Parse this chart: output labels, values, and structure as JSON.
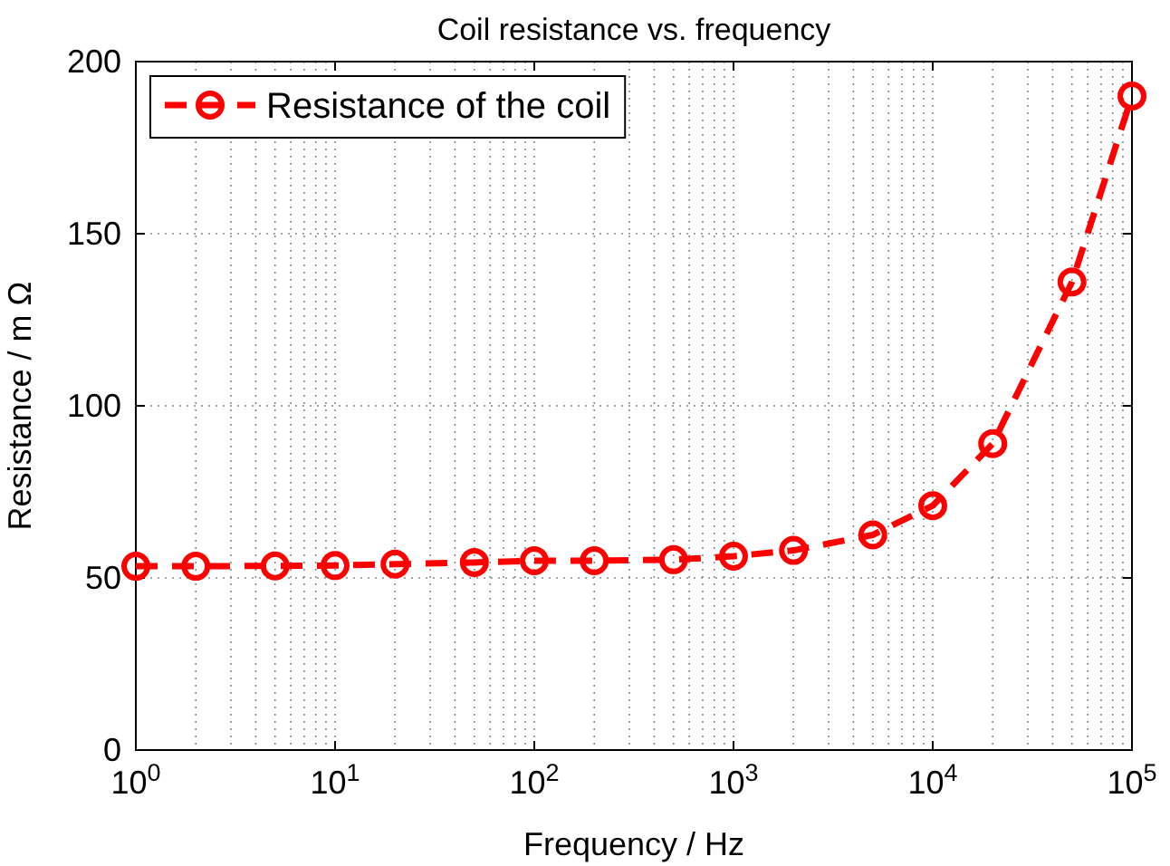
{
  "chart_data": {
    "type": "line",
    "title": "Coil resistance vs. frequency",
    "xlabel": "Frequency / Hz",
    "ylabel": "Resistance / m Ω",
    "x": [
      1,
      2,
      5,
      10,
      20,
      50,
      100,
      200,
      500,
      1000,
      2000,
      5000,
      10000,
      20000,
      50000,
      100000
    ],
    "series": [
      {
        "name": "Resistance of the coil",
        "color": "#ff0000",
        "values": [
          53.4,
          53.4,
          53.5,
          53.6,
          54,
          54.5,
          55,
          55,
          55.3,
          56.3,
          58,
          62.5,
          71,
          89,
          136,
          190
        ]
      }
    ],
    "log": "x",
    "xlim": [
      1,
      100000
    ],
    "xticks": [
      {
        "value": 1,
        "label": "10$^{0}$"
      },
      {
        "value": 10,
        "label": "10$^{1}$"
      },
      {
        "value": 100,
        "label": "10$^{2}$"
      },
      {
        "value": 1000,
        "label": "10$^{3}$"
      },
      {
        "value": 10000,
        "label": "10$^{4}$"
      },
      {
        "value": 100000,
        "label": "10$^{5}$"
      }
    ],
    "ylim": [
      0,
      200
    ],
    "yticks": [
      0,
      50,
      100,
      150,
      200
    ],
    "grid": true,
    "legend": "top left",
    "marker": "circle",
    "line_style": "dashed"
  }
}
